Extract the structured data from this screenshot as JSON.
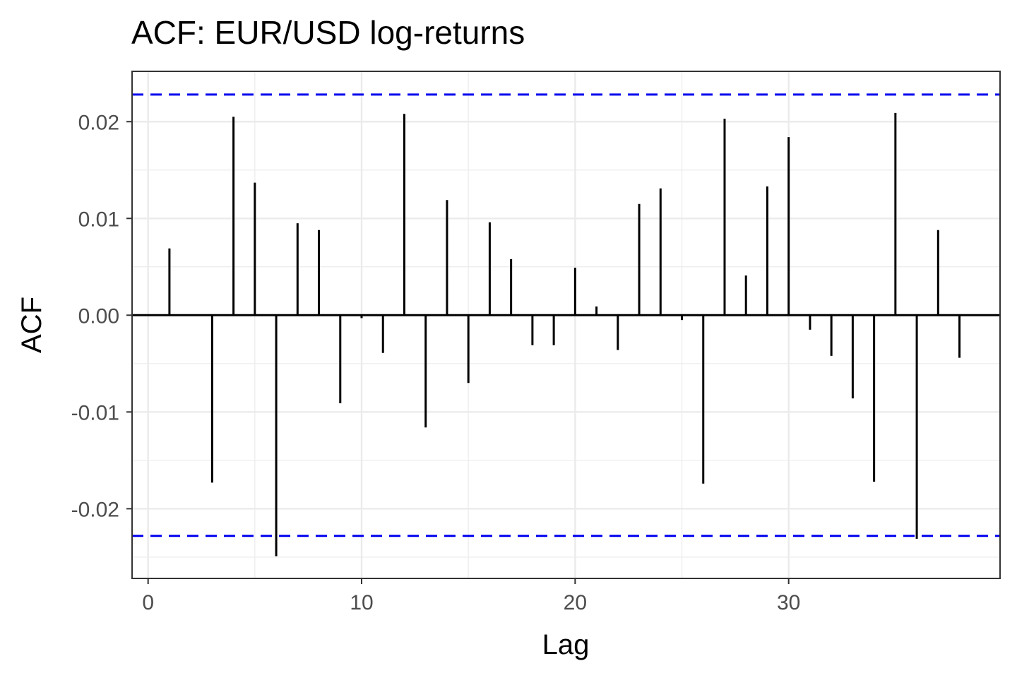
{
  "chart_data": {
    "type": "bar",
    "title": "ACF: EUR/USD log-returns",
    "xlabel": "Lag",
    "ylabel": "ACF",
    "xlim": [
      -0.75,
      39.9
    ],
    "ylim": [
      -0.0272,
      0.0252
    ],
    "x_ticks": [
      0,
      10,
      20,
      30
    ],
    "x_tick_labels": [
      "0",
      "10",
      "20",
      "30"
    ],
    "y_ticks": [
      -0.02,
      -0.01,
      0.0,
      0.01,
      0.02
    ],
    "y_tick_labels": [
      "-0.02",
      "-0.01",
      "0.00",
      "0.01",
      "0.02"
    ],
    "grid": true,
    "confidence_bound": 0.0228,
    "confidence_color": "#0000ee",
    "bar_color": "#000000",
    "lags": [
      1,
      2,
      3,
      4,
      5,
      6,
      7,
      8,
      9,
      10,
      11,
      12,
      13,
      14,
      15,
      16,
      17,
      18,
      19,
      20,
      21,
      22,
      23,
      24,
      25,
      26,
      27,
      28,
      29,
      30,
      31,
      32,
      33,
      34,
      35,
      36,
      37,
      38
    ],
    "values": [
      0.0069,
      0.0,
      -0.0173,
      0.0205,
      0.0137,
      -0.0249,
      0.0095,
      0.0088,
      -0.0091,
      -0.0003,
      -0.0039,
      0.0208,
      -0.0116,
      0.0119,
      -0.007,
      0.0096,
      0.0058,
      -0.0031,
      -0.0031,
      0.0049,
      0.0009,
      -0.0036,
      0.0115,
      0.0131,
      -0.0005,
      -0.0174,
      0.0203,
      0.0041,
      0.0133,
      0.0184,
      -0.0015,
      -0.0042,
      -0.0086,
      -0.0172,
      0.0209,
      -0.0231,
      0.0088,
      -0.0044
    ]
  }
}
